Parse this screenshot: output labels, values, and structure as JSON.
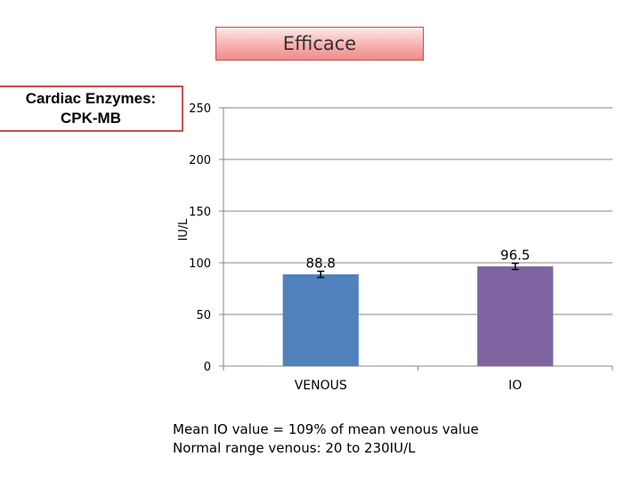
{
  "header": {
    "title": "Efficace",
    "side_label_line1": "Cardiac Enzymes:",
    "side_label_line2": "CPK-MB"
  },
  "notes": {
    "line1": "Mean IO value = 109% of mean venous value",
    "line2": "Normal range venous: 20 to 230IU/L"
  },
  "chart_data": {
    "type": "bar",
    "categories": [
      "VENOUS",
      "IO"
    ],
    "values": [
      88.8,
      96.5
    ],
    "data_labels": [
      "88.8",
      "96.5"
    ],
    "bar_colors": [
      "#4f81bd",
      "#8064a2"
    ],
    "error_bar_halfwidth": 3,
    "ylabel": "IU/L",
    "xlabel": "",
    "ylim": [
      0,
      250
    ],
    "yticks": [
      0,
      50,
      100,
      150,
      200,
      250
    ],
    "grid": true
  }
}
